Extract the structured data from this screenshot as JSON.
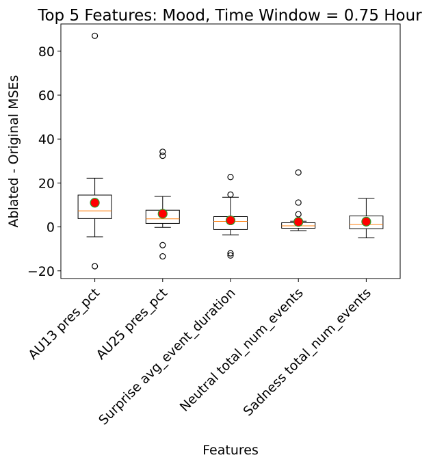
{
  "chart_data": {
    "type": "box",
    "title": "Top 5 Features: Mood, Time Window = 0.75 Hour",
    "xlabel": "Features",
    "ylabel": "Ablated - Original MSEs",
    "categories": [
      "AU13 pres_pct",
      "AU25 pres_pct",
      "Surprise avg_event_duration",
      "Neutral total_num_events",
      "Sadness total_num_events"
    ],
    "ylim": [
      -23.5,
      92.4
    ],
    "yticks": [
      -20,
      0,
      20,
      40,
      60,
      80
    ],
    "yticklabels": [
      "−20",
      "0",
      "20",
      "40",
      "60",
      "80"
    ],
    "grid": false,
    "colors": {
      "box_edge": "#000000",
      "median": "#ff7f0e",
      "mean_fill": "#ff0000",
      "mean_edge": "#2ca02c"
    },
    "boxes": [
      {
        "whislo": -4.5,
        "q1": 3.8,
        "med": 7.3,
        "q3": 14.5,
        "whishi": 22.2,
        "mean": 11.0,
        "fliers": [
          87.0,
          -17.9
        ]
      },
      {
        "whislo": -0.2,
        "q1": 1.6,
        "med": 3.7,
        "q3": 7.6,
        "whishi": 13.9,
        "mean": 6.0,
        "fliers": [
          34.2,
          32.4,
          -8.3,
          -13.4
        ]
      },
      {
        "whislo": -3.6,
        "q1": -1.2,
        "med": 2.5,
        "q3": 4.7,
        "whishi": 13.5,
        "mean": 3.0,
        "fliers": [
          22.7,
          14.7,
          -12.0,
          -13.0
        ]
      },
      {
        "whislo": -1.7,
        "q1": -0.6,
        "med": 0.5,
        "q3": 1.9,
        "whishi": 2.6,
        "mean": 2.3,
        "fliers": [
          24.8,
          11.1,
          5.8
        ]
      },
      {
        "whislo": -5.0,
        "q1": -0.8,
        "med": 1.1,
        "q3": 5.0,
        "whishi": 13.0,
        "mean": 2.4,
        "fliers": []
      }
    ]
  }
}
